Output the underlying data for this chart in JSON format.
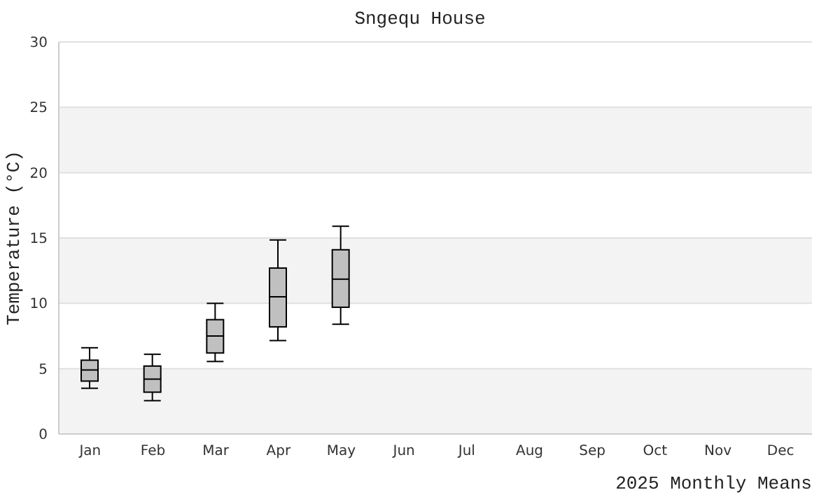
{
  "chart_data": {
    "type": "box",
    "title": "Sngequ House",
    "xlabel": "2025 Monthly Means",
    "ylabel": "Temperature (°C)",
    "categories": [
      "Jan",
      "Feb",
      "Mar",
      "Apr",
      "May",
      "Jun",
      "Jul",
      "Aug",
      "Sep",
      "Oct",
      "Nov",
      "Dec"
    ],
    "color": "#c0c0c0",
    "boxes": [
      {
        "low": 3.5,
        "q1": 4.05,
        "median": 4.9,
        "q3": 5.65,
        "high": 6.6
      },
      {
        "low": 2.55,
        "q1": 3.2,
        "median": 4.2,
        "q3": 5.2,
        "high": 6.1
      },
      {
        "low": 5.55,
        "q1": 6.2,
        "median": 7.5,
        "q3": 8.75,
        "high": 10.0
      },
      {
        "low": 7.15,
        "q1": 8.2,
        "median": 10.5,
        "q3": 12.7,
        "high": 14.85
      },
      {
        "low": 8.4,
        "q1": 9.7,
        "median": 11.85,
        "q3": 14.1,
        "high": 15.9
      },
      null,
      null,
      null,
      null,
      null,
      null,
      null
    ],
    "ylim": [
      0,
      30
    ],
    "yticks": [
      0,
      5,
      10,
      15,
      20,
      25,
      30
    ],
    "grid": "y",
    "legend": false
  }
}
